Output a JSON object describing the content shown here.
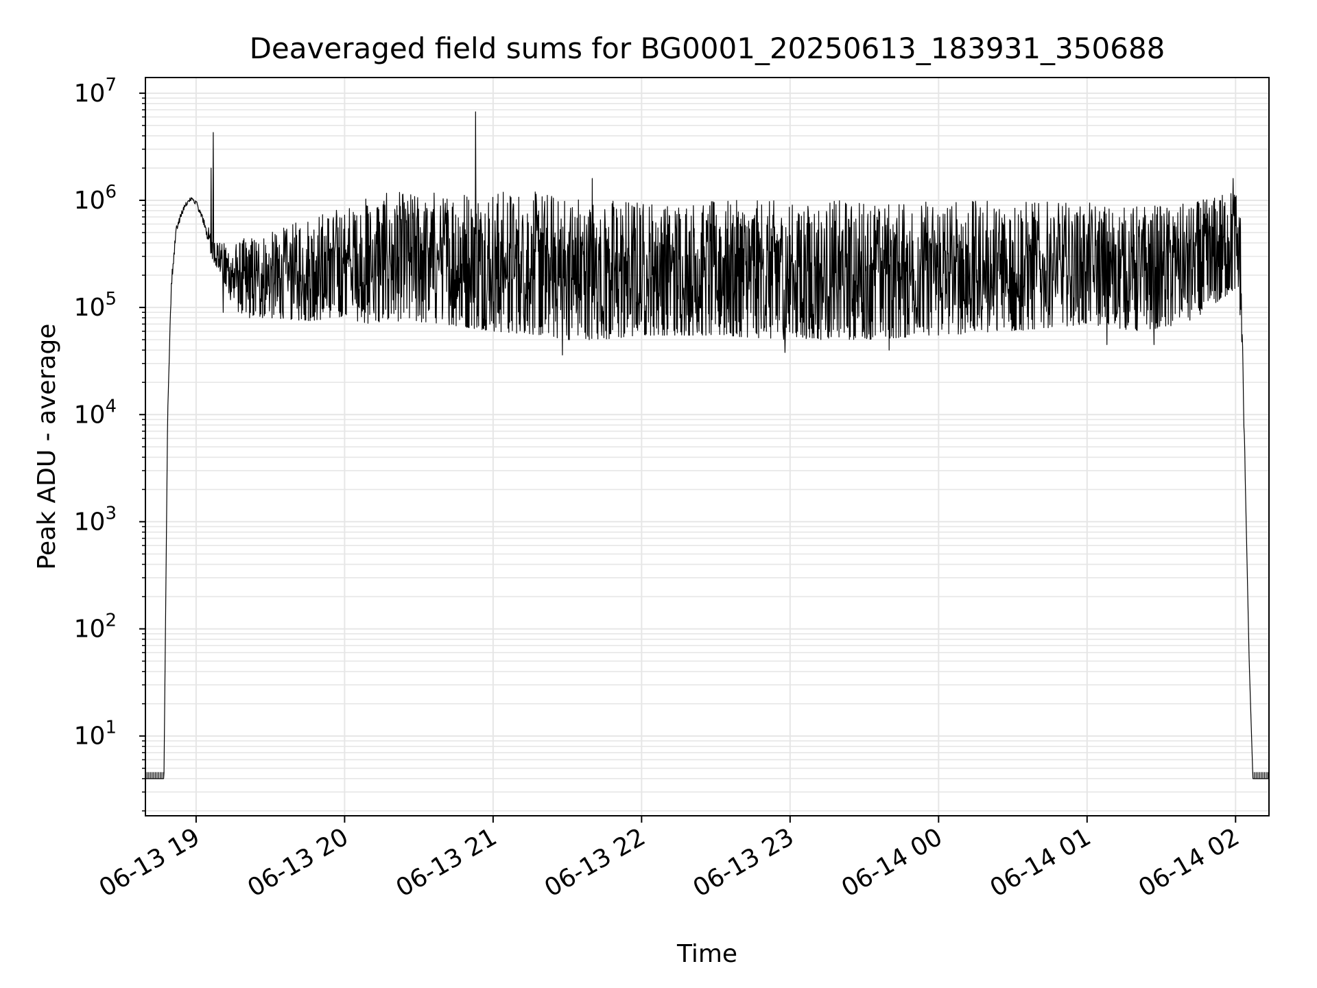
{
  "chart_data": {
    "type": "line",
    "title": "Deaveraged field sums for BG0001_20250613_183931_350688",
    "xlabel": "Time",
    "ylabel": "Peak ADU - average",
    "yscale": "log",
    "ylim": [
      1.8,
      14000000
    ],
    "xlim": [
      "2025-06-13 18:39:31",
      "2025-06-14 02:13:30"
    ],
    "x_ticks": [
      {
        "value": "2025-06-13 19:00",
        "label": "06-13 19"
      },
      {
        "value": "2025-06-13 20:00",
        "label": "06-13 20"
      },
      {
        "value": "2025-06-13 21:00",
        "label": "06-13 21"
      },
      {
        "value": "2025-06-13 22:00",
        "label": "06-13 22"
      },
      {
        "value": "2025-06-13 23:00",
        "label": "06-13 23"
      },
      {
        "value": "2025-06-14 00:00",
        "label": "06-14 00"
      },
      {
        "value": "2025-06-14 01:00",
        "label": "06-14 01"
      },
      {
        "value": "2025-06-14 02:00",
        "label": "06-14 02"
      }
    ],
    "y_ticks": [
      {
        "value": 10,
        "base": "10",
        "exp": "1"
      },
      {
        "value": 100,
        "base": "10",
        "exp": "2"
      },
      {
        "value": 1000,
        "base": "10",
        "exp": "3"
      },
      {
        "value": 10000,
        "base": "10",
        "exp": "4"
      },
      {
        "value": 100000,
        "base": "10",
        "exp": "5"
      },
      {
        "value": 1000000,
        "base": "10",
        "exp": "6"
      },
      {
        "value": 10000000,
        "base": "10",
        "exp": "7"
      }
    ],
    "grid": "major and minor",
    "line_color": "#000000",
    "series": [
      {
        "envelope": {
          "x": [
            "2025-06-13 18:39:31",
            "2025-06-13 18:47:00",
            "2025-06-13 18:48:30",
            "2025-06-13 18:50:00",
            "2025-06-13 18:52:00",
            "2025-06-13 18:55:00",
            "2025-06-13 18:58:00",
            "2025-06-13 19:00:00",
            "2025-06-13 19:03:00",
            "2025-06-13 19:06:00",
            "2025-06-13 19:10:00",
            "2025-06-13 19:15:00",
            "2025-06-13 19:20:00",
            "2025-06-13 19:30:00",
            "2025-06-13 19:45:00",
            "2025-06-13 20:00:00",
            "2025-06-13 20:10:00",
            "2025-06-13 20:20:00",
            "2025-06-13 20:40:00",
            "2025-06-13 21:00:00",
            "2025-06-13 21:20:00",
            "2025-06-13 21:30:00",
            "2025-06-13 21:45:00",
            "2025-06-13 22:00:00",
            "2025-06-13 22:30:00",
            "2025-06-13 23:00:00",
            "2025-06-13 23:30:00",
            "2025-06-14 00:00:00",
            "2025-06-14 00:30:00",
            "2025-06-14 01:00:00",
            "2025-06-14 01:20:00",
            "2025-06-14 01:40:00",
            "2025-06-14 01:50:00",
            "2025-06-14 02:00:00",
            "2025-06-14 02:02:00",
            "2025-06-14 02:04:00",
            "2025-06-14 02:05:30",
            "2025-06-14 02:07:00",
            "2025-06-14 02:13:30"
          ],
          "low": [
            4,
            4,
            10000,
            150000,
            500000,
            800000,
            1000000,
            900000,
            600000,
            300000,
            200000,
            100000,
            80000,
            80000,
            75000,
            80000,
            70000,
            75000,
            70000,
            60000,
            55000,
            50000,
            50000,
            55000,
            55000,
            50000,
            50000,
            55000,
            60000,
            70000,
            60000,
            70000,
            100000,
            150000,
            80000,
            2000,
            50,
            4,
            4
          ],
          "high": [
            4,
            4,
            10000,
            200000,
            600000,
            900000,
            1100000,
            1000000,
            700000,
            500000,
            400000,
            400000,
            450000,
            500000,
            700000,
            900000,
            1100000,
            1200000,
            1250000,
            1250000,
            1200000,
            1150000,
            1050000,
            1000000,
            1000000,
            1000000,
            1000000,
            1000000,
            1000000,
            950000,
            900000,
            950000,
            1050000,
            1300000,
            900000,
            2000,
            50,
            4,
            4
          ]
        },
        "spikes": [
          {
            "x": "2025-06-13 19:07:00",
            "y": 4300000
          },
          {
            "x": "2025-06-13 19:06:00",
            "y": 2000000
          },
          {
            "x": "2025-06-13 20:53:00",
            "y": 6700000
          },
          {
            "x": "2025-06-13 21:40:00",
            "y": 1600000
          },
          {
            "x": "2025-06-14 01:59:00",
            "y": 1600000
          }
        ],
        "dips": [
          {
            "x": "2025-06-13 19:11:00",
            "y": 90000
          },
          {
            "x": "2025-06-13 21:28:00",
            "y": 36000
          },
          {
            "x": "2025-06-13 22:58:00",
            "y": 38000
          },
          {
            "x": "2025-06-13 23:40:00",
            "y": 40000
          },
          {
            "x": "2025-06-14 01:08:00",
            "y": 45000
          },
          {
            "x": "2025-06-14 01:27:00",
            "y": 45000
          }
        ]
      }
    ]
  }
}
